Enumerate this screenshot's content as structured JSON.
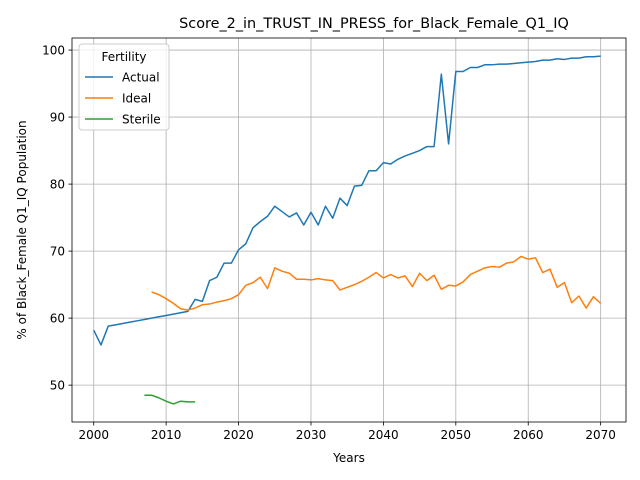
{
  "chart_data": {
    "type": "line",
    "title": "Score_2_in_TRUST_IN_PRESS_for_Black_Female_Q1_IQ",
    "xlabel": "Years",
    "ylabel": "% of Black_Female Q1_IQ Population",
    "xlim": [
      1997,
      2073.5
    ],
    "ylim": [
      44.5,
      101.8
    ],
    "xticks": [
      2000,
      2010,
      2020,
      2030,
      2040,
      2050,
      2060,
      2070
    ],
    "yticks": [
      50,
      60,
      70,
      80,
      90,
      100
    ],
    "grid": true,
    "legend": {
      "title": "Fertility",
      "position": "top-left"
    },
    "series": [
      {
        "name": "Actual",
        "color": "#1f77b4",
        "x": [
          2000,
          2001,
          2002,
          2003,
          2004,
          2005,
          2006,
          2007,
          2008,
          2009,
          2010,
          2011,
          2012,
          2013,
          2014,
          2015,
          2016,
          2017,
          2018,
          2019,
          2020,
          2021,
          2022,
          2023,
          2024,
          2025,
          2026,
          2027,
          2028,
          2029,
          2030,
          2031,
          2032,
          2033,
          2034,
          2035,
          2036,
          2037,
          2038,
          2039,
          2040,
          2041,
          2042,
          2043,
          2044,
          2045,
          2046,
          2047,
          2048,
          2049,
          2050,
          2051,
          2052,
          2053,
          2054,
          2055,
          2056,
          2057,
          2058,
          2059,
          2060,
          2061,
          2062,
          2063,
          2064,
          2065,
          2066,
          2067,
          2068,
          2069,
          2070
        ],
        "values": [
          58.2,
          56.0,
          58.8,
          59.0,
          59.2,
          59.4,
          59.6,
          59.8,
          60.0,
          60.2,
          60.4,
          60.6,
          60.8,
          61.0,
          62.8,
          62.5,
          65.6,
          66.1,
          68.2,
          68.2,
          70.2,
          71.1,
          73.5,
          74.4,
          75.2,
          76.7,
          75.9,
          75.1,
          75.7,
          73.9,
          75.8,
          73.9,
          76.7,
          74.9,
          77.9,
          76.8,
          79.7,
          79.8,
          82.0,
          82.0,
          83.2,
          83.0,
          83.7,
          84.2,
          84.6,
          85.0,
          85.6,
          85.6,
          96.4,
          86.0,
          96.8,
          96.8,
          97.4,
          97.4,
          97.8,
          97.8,
          97.9,
          97.9,
          98.0,
          98.1,
          98.2,
          98.3,
          98.5,
          98.5,
          98.7,
          98.6,
          98.8,
          98.8,
          99.0,
          99.0,
          99.1
        ]
      },
      {
        "name": "Ideal",
        "color": "#ff7f0e",
        "x": [
          2008,
          2009,
          2010,
          2011,
          2012,
          2013,
          2014,
          2015,
          2016,
          2017,
          2018,
          2019,
          2020,
          2021,
          2022,
          2023,
          2024,
          2025,
          2026,
          2027,
          2028,
          2029,
          2030,
          2031,
          2032,
          2033,
          2034,
          2035,
          2036,
          2037,
          2038,
          2039,
          2040,
          2041,
          2042,
          2043,
          2044,
          2045,
          2046,
          2047,
          2048,
          2049,
          2050,
          2051,
          2052,
          2053,
          2054,
          2055,
          2056,
          2057,
          2058,
          2059,
          2060,
          2061,
          2062,
          2063,
          2064,
          2065,
          2066,
          2067,
          2068,
          2069,
          2070
        ],
        "values": [
          63.9,
          63.5,
          62.9,
          62.2,
          61.4,
          61.2,
          61.5,
          62.0,
          62.1,
          62.4,
          62.6,
          62.9,
          63.5,
          64.9,
          65.3,
          66.1,
          64.4,
          67.5,
          67.0,
          66.7,
          65.8,
          65.8,
          65.7,
          65.9,
          65.7,
          65.6,
          64.2,
          64.6,
          65.0,
          65.5,
          66.1,
          66.8,
          66.0,
          66.5,
          66.0,
          66.3,
          64.7,
          66.7,
          65.6,
          66.4,
          64.3,
          64.9,
          64.8,
          65.4,
          66.5,
          67.0,
          67.5,
          67.7,
          67.6,
          68.2,
          68.4,
          69.2,
          68.8,
          69.0,
          66.8,
          67.3,
          64.6,
          65.3,
          62.3,
          63.3,
          61.5,
          63.2,
          62.2
        ]
      },
      {
        "name": "Sterile",
        "color": "#2ca02c",
        "x": [
          2007,
          2008,
          2009,
          2010,
          2011,
          2012,
          2013,
          2014
        ],
        "values": [
          48.5,
          48.5,
          48.1,
          47.6,
          47.2,
          47.6,
          47.5,
          47.5
        ]
      }
    ]
  }
}
